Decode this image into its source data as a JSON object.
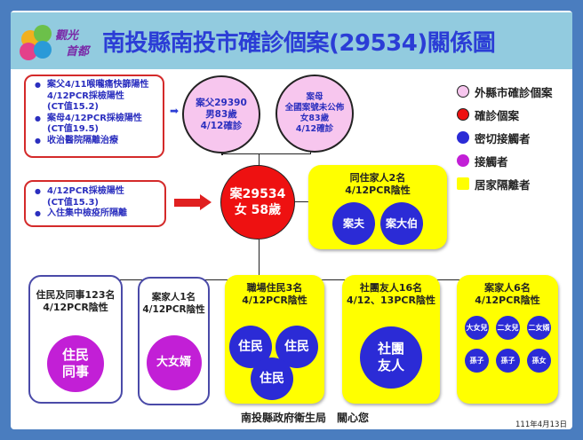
{
  "logo_text": "觀光首都",
  "title": "南投縣南投市確診個案(29534)關係圖",
  "parents_note": {
    "items": [
      "案父4/11喉嚨痛快篩陽性",
      "4/12PCR採檢陽性",
      "(CT值15.2)",
      "案母4/12PCR採檢陽性",
      "(CT值19.5)",
      "收治醫院隔離治療"
    ]
  },
  "father": [
    "案父29390",
    "男83歲",
    "4/12確診"
  ],
  "mother": [
    "案母",
    "全國案號未公佈",
    "女83歲",
    "4/12確診"
  ],
  "case_note": {
    "items": [
      "4/12PCR採檢陽性",
      "(CT值15.3)",
      "入住集中檢疫所隔離"
    ]
  },
  "case": [
    "案29534",
    "女 58歲"
  ],
  "household": {
    "title": "同住家人2名",
    "sub": "4/12PCR陰性",
    "members": [
      "案夫",
      "案大伯"
    ]
  },
  "legend": [
    {
      "label": "外縣市確診個案",
      "color": "#f7c6ee"
    },
    {
      "label": "確診個案",
      "color": "#ee1111"
    },
    {
      "label": "密切接觸者",
      "color": "#2b2bd6"
    },
    {
      "label": "接觸者",
      "color": "#c21fd6"
    },
    {
      "label": "居家隔離者",
      "color": "#ffff00"
    }
  ],
  "groups": [
    {
      "title": "住民及同事123名",
      "sub": "4/12PCR陰性",
      "members": [
        "住民\n同事"
      ]
    },
    {
      "title": "案家人1名",
      "sub": "4/12PCR陰性",
      "members": [
        "大女婿"
      ]
    },
    {
      "title": "職場住民3名",
      "sub": "4/12PCR陰性",
      "members": [
        "住民",
        "住民",
        "住民"
      ]
    },
    {
      "title": "社團友人16名",
      "sub": "4/12、13PCR陰性",
      "members": [
        "社團\n友人"
      ]
    },
    {
      "title": "案家人6名",
      "sub": "4/12PCR陰性",
      "members": [
        "大女兒",
        "二女兒",
        "二女婿",
        "孫子",
        "孫子",
        "孫女"
      ]
    }
  ],
  "footer": "南投縣政府衛生局　關心您",
  "date": "111年4月13日"
}
